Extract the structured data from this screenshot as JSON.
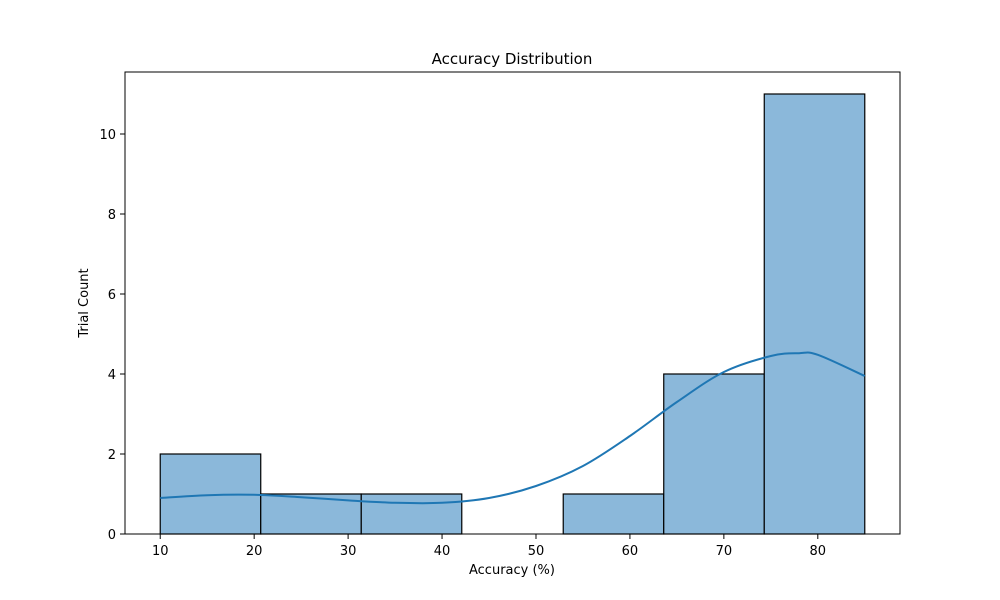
{
  "chart_data": {
    "type": "bar",
    "subtype": "histogram-with-kde",
    "title": "Accuracy Distribution",
    "xlabel": "Accuracy (%)",
    "ylabel": "Trial Count",
    "xlim": [
      6.25,
      88.75
    ],
    "ylim": [
      0,
      11.55
    ],
    "xticks": [
      10,
      20,
      30,
      40,
      50,
      60,
      70,
      80
    ],
    "yticks": [
      0,
      2,
      4,
      6,
      8,
      10
    ],
    "bins": [
      {
        "x0": 10.0,
        "x1": 20.7,
        "count": 2
      },
      {
        "x0": 20.7,
        "x1": 31.4,
        "count": 1
      },
      {
        "x0": 31.4,
        "x1": 42.1,
        "count": 1
      },
      {
        "x0": 42.1,
        "x1": 52.9,
        "count": 0
      },
      {
        "x0": 52.9,
        "x1": 63.6,
        "count": 1
      },
      {
        "x0": 63.6,
        "x1": 74.3,
        "count": 4
      },
      {
        "x0": 74.3,
        "x1": 85.0,
        "count": 11
      }
    ],
    "kde": {
      "x": [
        10,
        15,
        20,
        25,
        30,
        35,
        40,
        45,
        50,
        55,
        60,
        65,
        70,
        75,
        78,
        80,
        85
      ],
      "y": [
        0.9,
        0.97,
        0.98,
        0.92,
        0.84,
        0.78,
        0.78,
        0.9,
        1.2,
        1.7,
        2.45,
        3.3,
        4.05,
        4.45,
        4.52,
        4.48,
        3.95
      ]
    },
    "grid": false,
    "legend": "none",
    "colors": {
      "bar_fill": "#8bb8da",
      "bar_edge": "#000000",
      "kde_line": "#1f77b4",
      "axes": "#000000"
    }
  }
}
